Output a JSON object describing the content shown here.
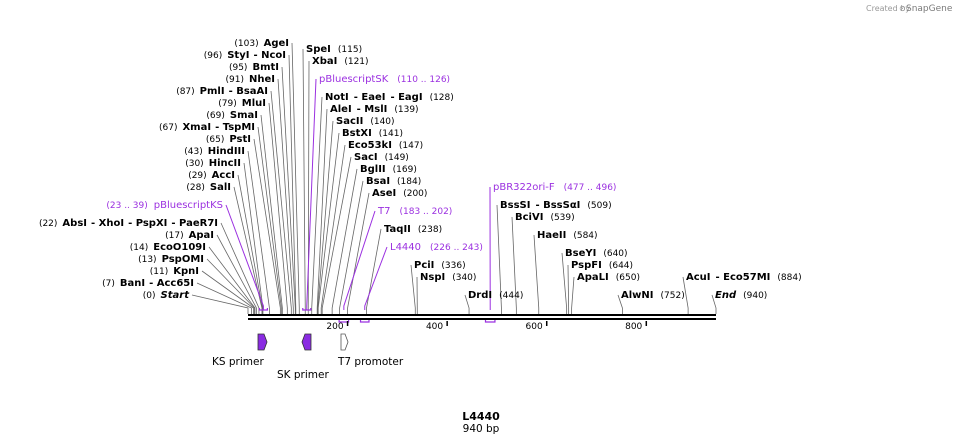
{
  "credit": {
    "prefix": "Created by",
    "brand": "SnapGene"
  },
  "map": {
    "name": "L4440",
    "length_label": "940 bp",
    "length": 940
  },
  "ticks": [
    "200",
    "400",
    "600",
    "800"
  ],
  "sites": [
    {
      "name": "AgeI",
      "pos": "(103)",
      "bp": 103
    },
    {
      "name": "StyI",
      "pos": "(96)",
      "bp": 96,
      "alt": "NcoI"
    },
    {
      "name": "BmtI",
      "pos": "(95)",
      "bp": 95
    },
    {
      "name": "NheI",
      "pos": "(91)",
      "bp": 91
    },
    {
      "name": "PmlI",
      "pos": "(87)",
      "bp": 87,
      "alt": "BsaAI"
    },
    {
      "name": "MluI",
      "pos": "(79)",
      "bp": 79
    },
    {
      "name": "SmaI",
      "pos": "(69)",
      "bp": 69
    },
    {
      "name": "XmaI",
      "pos": "(67)",
      "bp": 67,
      "alt": "TspMI"
    },
    {
      "name": "PstI",
      "pos": "(65)",
      "bp": 65
    },
    {
      "name": "HindIII",
      "pos": "(43)",
      "bp": 43
    },
    {
      "name": "HincII",
      "pos": "(30)",
      "bp": 30
    },
    {
      "name": "AccI",
      "pos": "(29)",
      "bp": 29
    },
    {
      "name": "SalI",
      "pos": "(28)",
      "bp": 28
    },
    {
      "name": "AbsI",
      "pos": "(22)",
      "bp": 22,
      "alt": "XhoI",
      "alt2": "PspXI",
      "alt3": "PaeR7I"
    },
    {
      "name": "ApaI",
      "pos": "(17)",
      "bp": 17
    },
    {
      "name": "EcoO109I",
      "pos": "(14)",
      "bp": 14
    },
    {
      "name": "PspOMI",
      "pos": "(13)",
      "bp": 13
    },
    {
      "name": "KpnI",
      "pos": "(11)",
      "bp": 11
    },
    {
      "name": "BanI",
      "pos": "(7)",
      "bp": 7,
      "alt": "Acc65I"
    },
    {
      "name": "Start",
      "pos": "(0)",
      "bp": 0
    },
    {
      "name": "SpeI",
      "pos": "(115)",
      "bp": 115
    },
    {
      "name": "XbaI",
      "pos": "(121)",
      "bp": 121
    },
    {
      "name": "NotI",
      "pos": "(128)",
      "bp": 128,
      "alt": "EaeI",
      "alt2": "EagI"
    },
    {
      "name": "AleI",
      "pos": "(139)",
      "bp": 139,
      "alt": "MslI"
    },
    {
      "name": "SacII",
      "pos": "(140)",
      "bp": 140
    },
    {
      "name": "BstXI",
      "pos": "(141)",
      "bp": 141
    },
    {
      "name": "Eco53kI",
      "pos": "(147)",
      "bp": 147
    },
    {
      "name": "SacI",
      "pos": "(149)",
      "bp": 149
    },
    {
      "name": "BglII",
      "pos": "(169)",
      "bp": 169
    },
    {
      "name": "BsaI",
      "pos": "(184)",
      "bp": 184
    },
    {
      "name": "AseI",
      "pos": "(200)",
      "bp": 200
    },
    {
      "name": "TaqII",
      "pos": "(238)",
      "bp": 238
    },
    {
      "name": "PciI",
      "pos": "(336)",
      "bp": 336
    },
    {
      "name": "NspI",
      "pos": "(340)",
      "bp": 340
    },
    {
      "name": "DrdI",
      "pos": "(444)",
      "bp": 444
    },
    {
      "name": "BssSI",
      "pos": "(509)",
      "bp": 509,
      "alt": "BssSαI"
    },
    {
      "name": "BciVI",
      "pos": "(539)",
      "bp": 539
    },
    {
      "name": "HaeII",
      "pos": "(584)",
      "bp": 584
    },
    {
      "name": "BseYI",
      "pos": "(640)",
      "bp": 640
    },
    {
      "name": "PspFI",
      "pos": "(644)",
      "bp": 644
    },
    {
      "name": "ApaLI",
      "pos": "(650)",
      "bp": 650
    },
    {
      "name": "AlwNI",
      "pos": "(752)",
      "bp": 752
    },
    {
      "name": "AcuI",
      "pos": "(884)",
      "bp": 884,
      "alt": "Eco57MI"
    },
    {
      "name": "End",
      "pos": "(940)",
      "bp": 940
    }
  ],
  "primers": [
    {
      "name": "pBluescriptSK",
      "range": "(110 .. 126)",
      "start": 110,
      "end": 126
    },
    {
      "name": "pBluescriptKS",
      "range": "(23 .. 39)",
      "start": 23,
      "end": 39
    },
    {
      "name": "T7",
      "range": "(183 .. 202)",
      "start": 183,
      "end": 202
    },
    {
      "name": "L4440",
      "range": "(226 .. 243)",
      "start": 226,
      "end": 243
    },
    {
      "name": "pBR322ori-F",
      "range": "(477 .. 496)",
      "start": 477,
      "end": 496
    }
  ],
  "features": [
    {
      "name": "KS primer",
      "color": "#8a2be2"
    },
    {
      "name": "SK primer",
      "color": "#8a2be2"
    },
    {
      "name": "T7 promoter",
      "color": "#ffffff"
    }
  ],
  "colors": {
    "primer": "#9b30e0",
    "feature": "#8a2be2",
    "line": "#555555"
  }
}
